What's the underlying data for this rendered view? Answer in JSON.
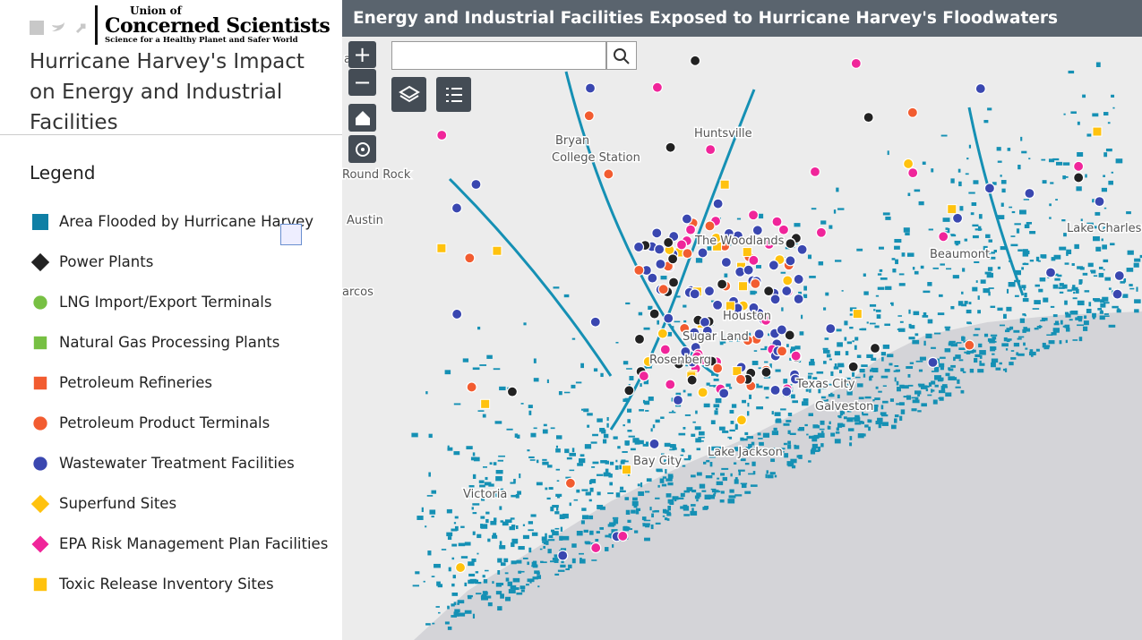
{
  "brand": {
    "name_line1": "Union of",
    "name_line2": "Concerned Scientists",
    "tagline": "Science for a Healthy Planet and Safer World"
  },
  "panel": {
    "title": "Hurricane Harvey's Impact on Energy and Industrial Facilities",
    "legend_heading": "Legend"
  },
  "legend": {
    "items": [
      "Area Flooded by Hurricane Harvey",
      "Power Plants",
      "LNG Import/Export Terminals",
      "Natural Gas Processing Plants",
      "Petroleum Refineries",
      "Petroleum Product Terminals",
      "Wastewater Treatment Facilities",
      "Superfund Sites",
      "EPA Risk Management Plan Facilities",
      "Toxic Release Inventory Sites"
    ]
  },
  "map": {
    "title": "Energy and Industrial Facilities Exposed to Hurricane Harvey's Floodwaters",
    "zoom_in": "+",
    "zoom_out": "−",
    "labels": [
      "an",
      "Bryan",
      "College Station",
      "Huntsville",
      "Round Rock",
      "Austin",
      "The Woodlands",
      "Beaumont",
      "Lake Charles",
      "arcos",
      "Houston",
      "Sugar Land",
      "Rosenberg",
      "Texas City",
      "Galveston",
      "Bay City",
      "Lake Jackson",
      "Victoria"
    ]
  }
}
